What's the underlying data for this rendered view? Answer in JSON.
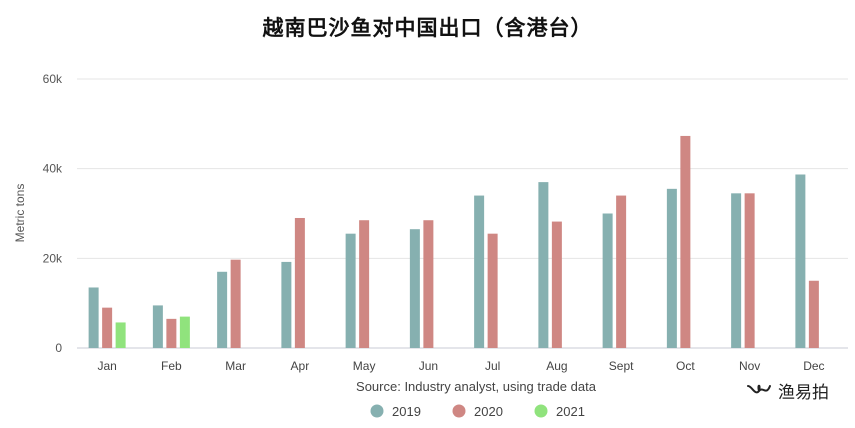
{
  "title": "越南巴沙鱼对中国出口（含港台）",
  "watermark": {
    "text": "渔易拍",
    "icon": "wechat-channel-icon"
  },
  "colors": {
    "2019": "#86b0b0",
    "2020": "#cf8783",
    "2021": "#90e37d",
    "grid": "#e4e4e4",
    "axis": "#c8cbd6"
  },
  "chart_data": {
    "type": "bar",
    "title": "越南巴沙鱼对中国出口（含港台）",
    "ylabel": "Metric tons",
    "xlabel": "Source: Industry analyst, using trade data",
    "ylim": [
      0,
      60000
    ],
    "yticks": [
      0,
      20000,
      40000,
      60000
    ],
    "ytick_labels": [
      "0",
      "20k",
      "40k",
      "60k"
    ],
    "grid": true,
    "legend_position": "bottom-center",
    "categories": [
      "Jan",
      "Feb",
      "Mar",
      "Apr",
      "May",
      "Jun",
      "Jul",
      "Aug",
      "Sept",
      "Oct",
      "Nov",
      "Dec"
    ],
    "series": [
      {
        "name": "2019",
        "values": [
          13500,
          9500,
          17000,
          19200,
          25500,
          26500,
          34000,
          37000,
          30000,
          35500,
          34500,
          38700
        ]
      },
      {
        "name": "2020",
        "values": [
          9000,
          6500,
          19700,
          29000,
          28500,
          28500,
          25500,
          28200,
          34000,
          47300,
          34500,
          15000
        ]
      },
      {
        "name": "2021",
        "values": [
          5700,
          7000,
          null,
          null,
          null,
          null,
          null,
          null,
          null,
          null,
          null,
          null
        ]
      }
    ]
  }
}
